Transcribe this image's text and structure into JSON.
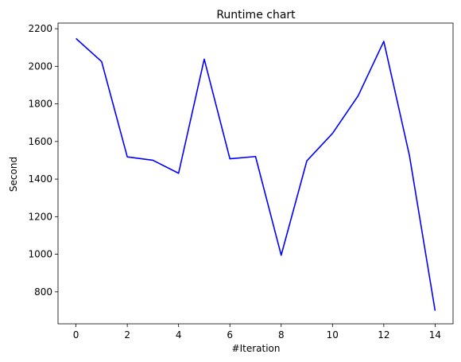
{
  "chart_data": {
    "type": "line",
    "title": "Runtime chart",
    "xlabel": "#Iteration",
    "ylabel": "Second",
    "xlim": [
      -0.7,
      14.7
    ],
    "ylim": [
      630,
      2230
    ],
    "xticks": [
      0,
      2,
      4,
      6,
      8,
      10,
      12,
      14
    ],
    "yticks": [
      800,
      1000,
      1200,
      1400,
      1600,
      1800,
      2000,
      2200
    ],
    "grid": false,
    "series": [
      {
        "color": "#0000ff",
        "x": [
          0,
          1,
          2,
          3,
          4,
          5,
          6,
          7,
          8,
          9,
          10,
          11,
          12,
          13,
          14
        ],
        "values": [
          2148,
          2025,
          1518,
          1500,
          1431,
          2038,
          1508,
          1520,
          995,
          1497,
          1643,
          1843,
          2133,
          1525,
          700
        ]
      }
    ]
  }
}
